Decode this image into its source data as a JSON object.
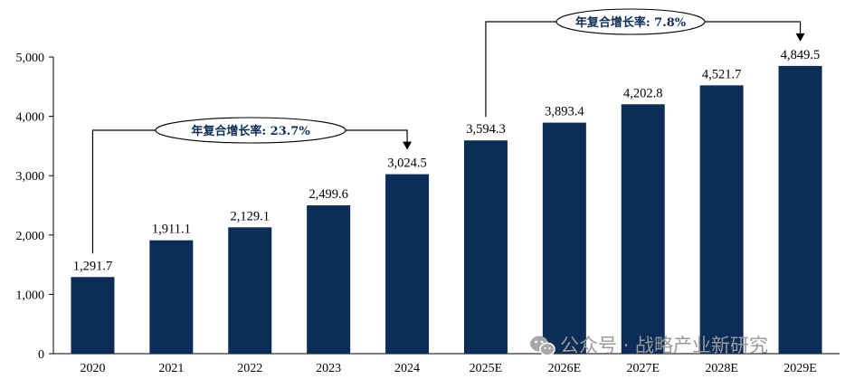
{
  "chart_data": {
    "type": "bar",
    "categories": [
      "2020",
      "2021",
      "2022",
      "2023",
      "2024",
      "2025E",
      "2026E",
      "2027E",
      "2028E",
      "2029E"
    ],
    "values": [
      1291.7,
      1911.1,
      2129.1,
      2499.6,
      3024.5,
      3594.3,
      3893.4,
      4202.8,
      4521.7,
      4849.5
    ],
    "data_labels": [
      "1,291.7",
      "1,911.1",
      "2,129.1",
      "2,499.6",
      "3,024.5",
      "3,594.3",
      "3,893.4",
      "4,202.8",
      "4,521.7",
      "4,849.5"
    ],
    "ylim": [
      0,
      5000
    ],
    "yticks": [
      0,
      1000,
      2000,
      3000,
      4000,
      5000
    ],
    "ytick_labels": [
      "0",
      "1,000",
      "2,000",
      "3,000",
      "4,000",
      "5,000"
    ],
    "bar_color": "#0b2d57",
    "grid": false,
    "annotations": [
      {
        "text": "年复合增长率: 23.7%",
        "from": "2020",
        "to": "2024"
      },
      {
        "text": "年复合增长率: 7.8%",
        "from": "2025E",
        "to": "2029E"
      }
    ]
  },
  "watermark": "公众号 · 战略产业新研究"
}
